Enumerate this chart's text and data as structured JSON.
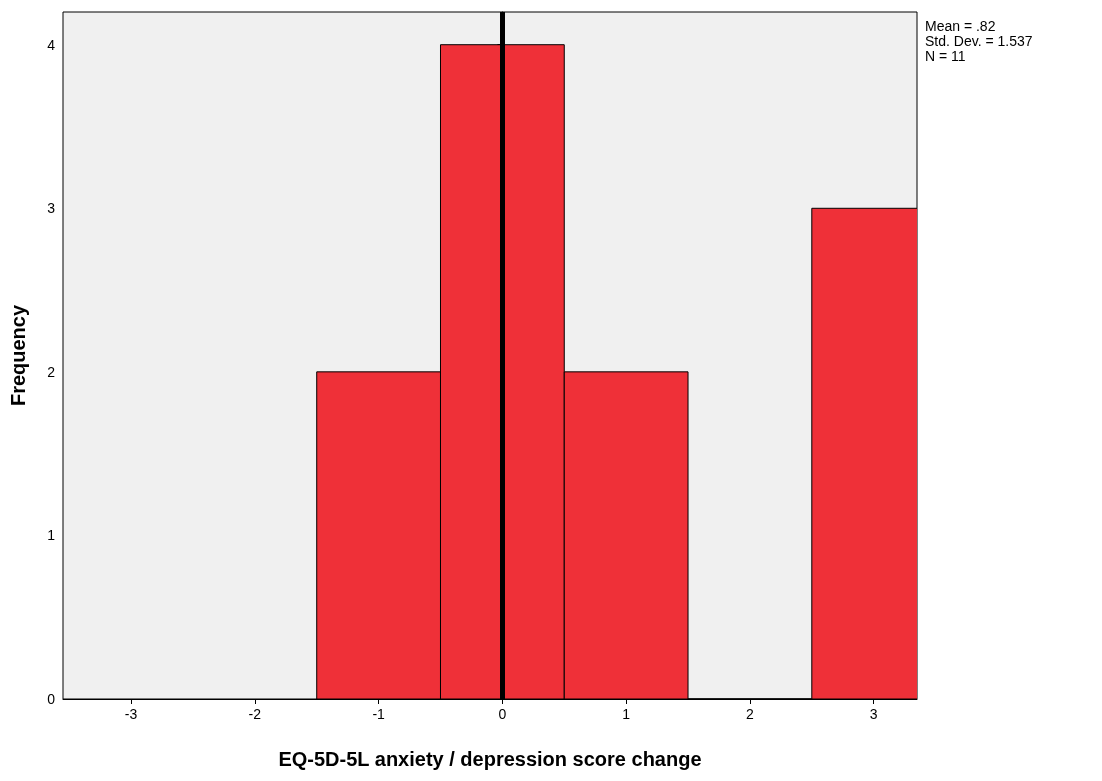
{
  "chart_data": {
    "type": "histogram",
    "xlabel": "EQ-5D-5L anxiety / depression score change",
    "ylabel": "Frequency",
    "bins": [
      -1.5,
      -0.5,
      0.5,
      1.5,
      2.5,
      3.5
    ],
    "values": [
      2,
      4,
      2,
      0,
      3
    ],
    "color": "#ef3038",
    "xlim": [
      -3.55,
      3.35
    ],
    "xticks": [
      -3,
      -2,
      -1,
      0,
      1,
      2,
      3
    ],
    "ylim": [
      0,
      4.2
    ],
    "yticks": [
      0,
      1,
      2,
      3,
      4
    ],
    "grid": false,
    "ref_lines": [
      {
        "axis": "x",
        "value": 0,
        "color": "#000000"
      }
    ],
    "annotations": [
      "Mean = .82",
      "Std. Dev. = 1.537",
      "N = 11"
    ]
  }
}
